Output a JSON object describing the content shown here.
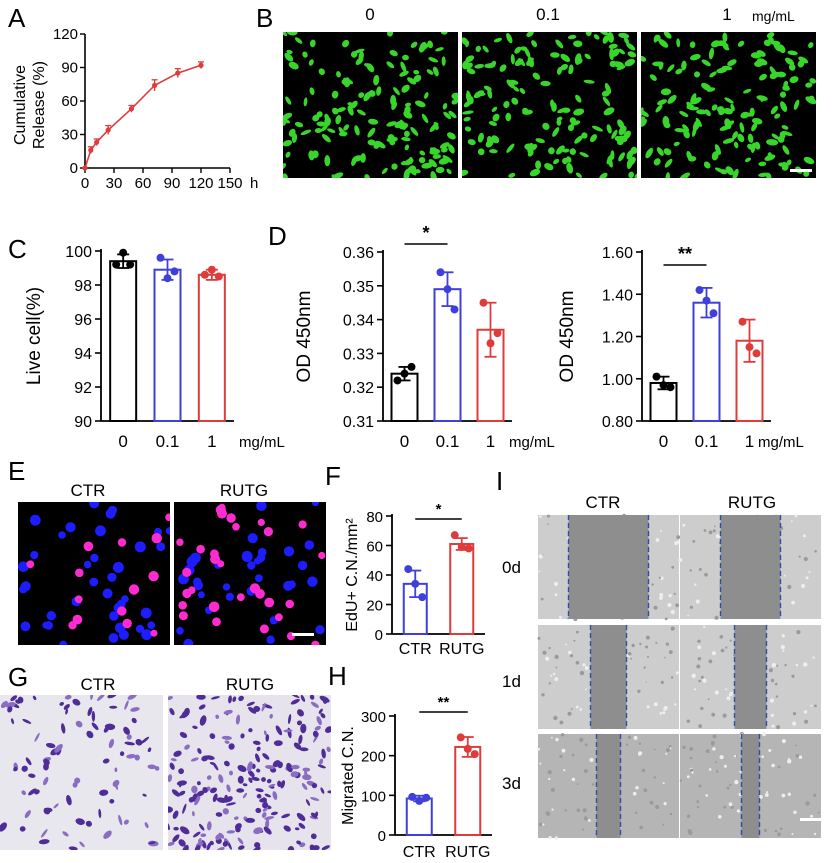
{
  "panels": {
    "A": "A",
    "B": "B",
    "C": "C",
    "D": "D",
    "E": "E",
    "F": "F",
    "G": "G",
    "H": "H",
    "I": "I"
  },
  "unit_mgml": "mg/mL",
  "colors": {
    "black": "#000000",
    "blue": "#3f3fd9",
    "red": "#e03b3b",
    "green": "#38d62b"
  },
  "panelB": {
    "labels": [
      "0",
      "0.1",
      "1"
    ]
  },
  "panelE": {
    "labels": [
      "CTR",
      "RUTG"
    ]
  },
  "panelG": {
    "labels": [
      "CTR",
      "RUTG"
    ]
  },
  "panelI": {
    "columns": [
      "CTR",
      "RUTG"
    ],
    "rows": [
      "0d",
      "1d",
      "3d"
    ]
  },
  "chart_data": [
    {
      "id": "A",
      "type": "line",
      "xlabel": "h",
      "ylabel": "Cumulative Release (%)",
      "xlim": [
        0,
        150
      ],
      "ylim": [
        0,
        120
      ],
      "xticks": [
        0,
        30,
        60,
        90,
        120,
        150
      ],
      "yticks": [
        0,
        30,
        60,
        90,
        120
      ],
      "x": [
        0,
        6,
        12,
        24,
        48,
        72,
        96,
        120
      ],
      "y": [
        0,
        16,
        23,
        34,
        53,
        74,
        85,
        92
      ],
      "err": [
        0,
        3,
        3,
        4,
        3,
        5,
        4,
        3
      ]
    },
    {
      "id": "C",
      "type": "bar",
      "ylabel": "Live cell(%)",
      "categories": [
        "0",
        "0.1",
        "1"
      ],
      "values": [
        99.4,
        98.9,
        98.6
      ],
      "err": [
        0.4,
        0.6,
        0.3
      ],
      "points": [
        [
          99.2,
          99.9,
          99.2
        ],
        [
          99.6,
          98.4,
          98.8
        ],
        [
          98.6,
          98.9,
          98.5
        ]
      ],
      "ylim": [
        90,
        100
      ],
      "yticks": [
        90,
        92,
        94,
        96,
        98,
        100
      ]
    },
    {
      "id": "D1",
      "type": "bar",
      "ylabel": "OD 450nm",
      "categories": [
        "0",
        "0.1",
        "1"
      ],
      "values": [
        0.324,
        0.349,
        0.337
      ],
      "err": [
        0.002,
        0.005,
        0.008
      ],
      "points": [
        [
          0.322,
          0.324,
          0.326
        ],
        [
          0.354,
          0.349,
          0.343
        ],
        [
          0.345,
          0.333,
          0.336
        ]
      ],
      "ylim": [
        0.31,
        0.36
      ],
      "yticks": [
        0.31,
        0.32,
        0.33,
        0.34,
        0.35,
        0.36
      ],
      "sig": {
        "label": "*",
        "from": 0,
        "to": 1
      }
    },
    {
      "id": "D2",
      "type": "bar",
      "ylabel": "OD 450nm",
      "categories": [
        "0",
        "0.1",
        "1"
      ],
      "values": [
        0.98,
        1.36,
        1.18
      ],
      "err": [
        0.03,
        0.07,
        0.1
      ],
      "points": [
        [
          1.01,
          0.97,
          0.96
        ],
        [
          1.42,
          1.37,
          1.31
        ],
        [
          1.27,
          1.15,
          1.12
        ]
      ],
      "ylim": [
        0.8,
        1.6
      ],
      "yticks": [
        0.8,
        1.0,
        1.2,
        1.4,
        1.6
      ],
      "ytick_labels": [
        "0.80",
        "1.00",
        "1.20",
        "1.40",
        "1.60"
      ],
      "sig": {
        "label": "**",
        "from": 0,
        "to": 1
      }
    },
    {
      "id": "F",
      "type": "bar",
      "ylabel": "EdU+ C.N./mm²",
      "categories": [
        "CTR",
        "RUTG"
      ],
      "values": [
        34,
        61
      ],
      "err": [
        9,
        4
      ],
      "points": [
        [
          44,
          34,
          25
        ],
        [
          67,
          59,
          58
        ]
      ],
      "ylim": [
        0,
        80
      ],
      "yticks": [
        0,
        20,
        40,
        60,
        80
      ],
      "sig": {
        "label": "*",
        "from": 0,
        "to": 1
      }
    },
    {
      "id": "H",
      "type": "bar",
      "ylabel": "Migrated C.N.",
      "categories": [
        "CTR",
        "RUTG"
      ],
      "values": [
        92,
        222
      ],
      "err": [
        7,
        25
      ],
      "points": [
        [
          96,
          86,
          94
        ],
        [
          246,
          217,
          204
        ]
      ],
      "ylim": [
        0,
        300
      ],
      "yticks": [
        0,
        100,
        200,
        300
      ],
      "sig": {
        "label": "**",
        "from": 0,
        "to": 1
      }
    }
  ]
}
